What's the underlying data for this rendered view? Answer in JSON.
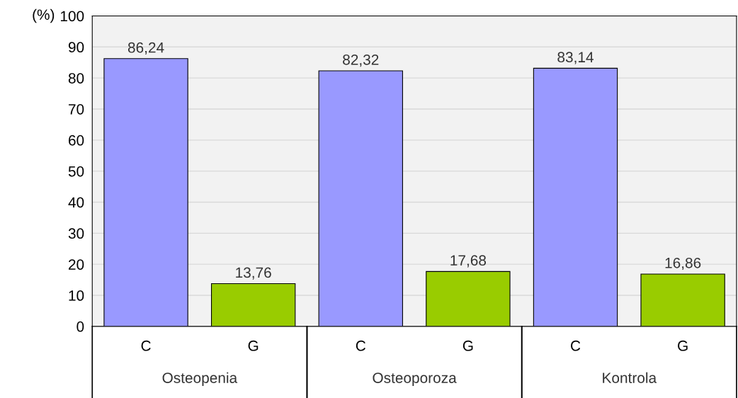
{
  "chart_data": {
    "type": "bar",
    "ylabel": "(%)",
    "categories": [
      "C",
      "G",
      "C",
      "G",
      "C",
      "G"
    ],
    "values": [
      86.24,
      13.76,
      82.32,
      17.68,
      83.14,
      16.86
    ],
    "colors": [
      "#9999ff",
      "#99cc00",
      "#9999ff",
      "#99cc00",
      "#9999ff",
      "#99cc00"
    ],
    "value_labels": [
      "86,24",
      "13,76",
      "82,32",
      "17,68",
      "83,14",
      "16,86"
    ],
    "annotations": [
      "Osteopenia",
      "Osteoporoza",
      "Kontrola"
    ],
    "ylim": [
      0,
      100
    ],
    "yticks": [
      0,
      10,
      20,
      30,
      40,
      50,
      60,
      70,
      80,
      90,
      100
    ],
    "grid": "y",
    "legend": false
  }
}
